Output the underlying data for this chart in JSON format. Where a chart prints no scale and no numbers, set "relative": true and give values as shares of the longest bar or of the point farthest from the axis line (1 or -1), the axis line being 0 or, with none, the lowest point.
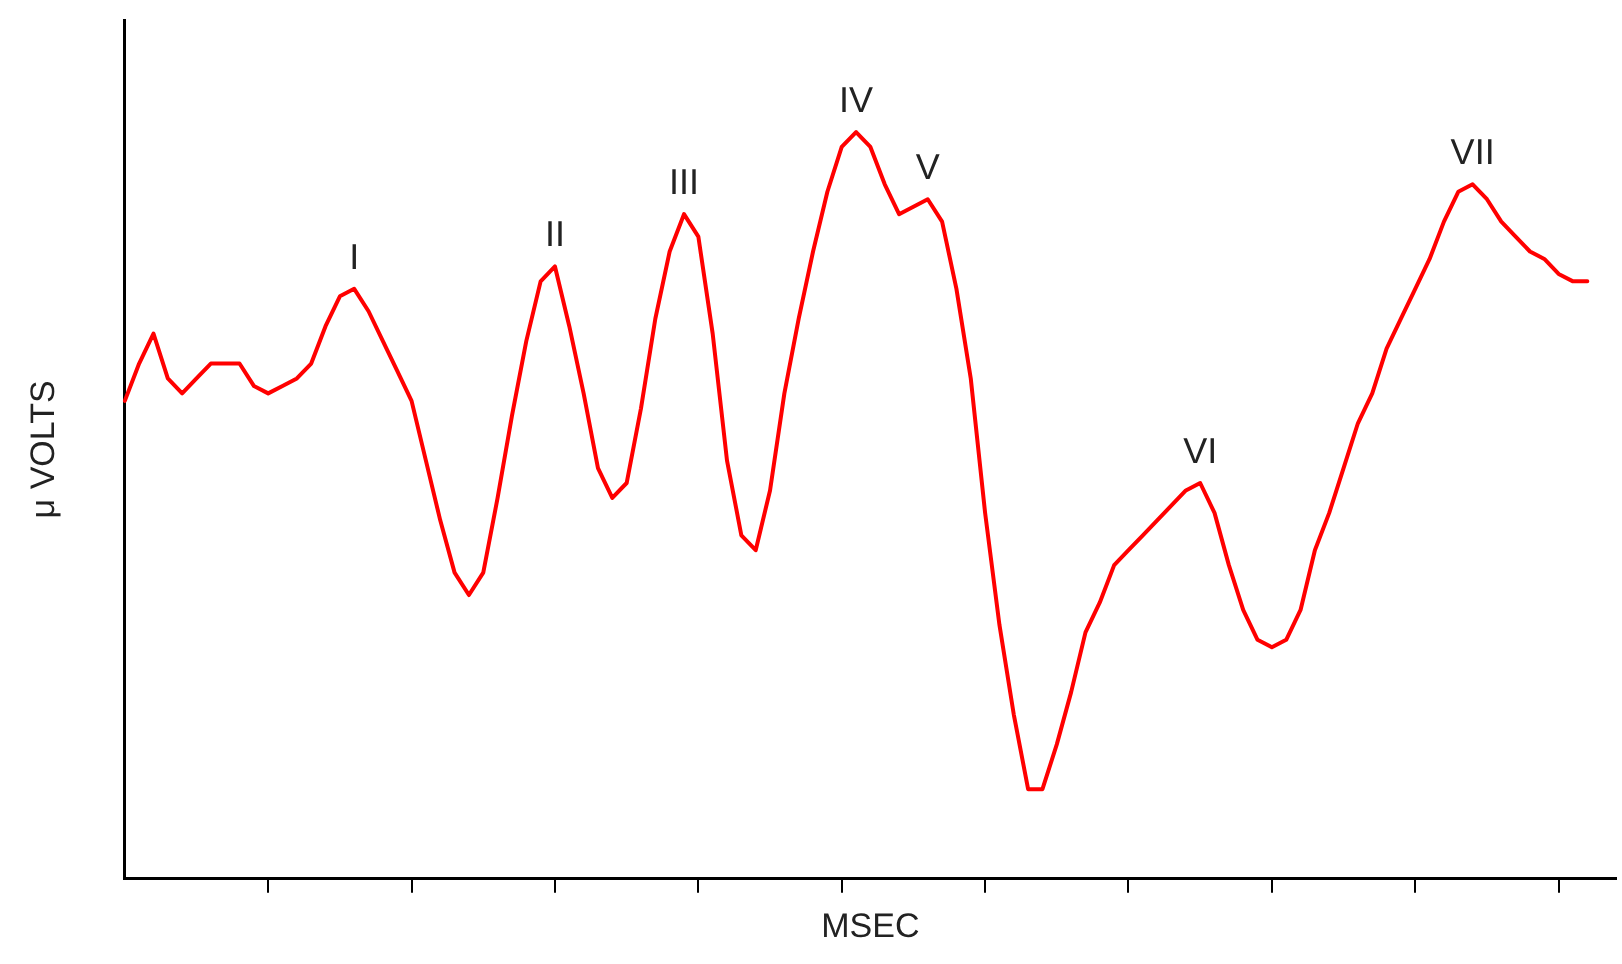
{
  "chart_data": {
    "type": "line",
    "relative": true,
    "xlabel": "MSEC",
    "ylabel": "μ VOLTS",
    "legend": false,
    "marker": "none",
    "line_style": "solid",
    "grid": false,
    "categories": [
      null,
      null,
      null,
      null,
      null,
      null,
      null,
      null,
      null,
      null,
      null,
      null,
      null,
      null,
      null,
      null,
      null,
      null,
      null,
      null,
      null,
      null,
      null,
      null,
      null,
      null,
      null,
      null,
      null,
      null,
      null,
      null,
      null,
      null,
      null,
      null,
      null,
      null,
      null,
      null,
      null,
      null,
      null,
      null,
      null,
      null,
      null,
      null,
      null,
      null,
      null,
      null,
      null,
      null,
      null,
      null,
      null,
      null,
      null,
      null,
      null,
      null,
      null,
      null,
      null,
      null,
      null,
      null,
      null,
      null,
      null,
      null,
      null,
      null,
      null,
      null,
      null,
      null,
      null,
      null,
      null,
      null,
      null,
      null,
      null,
      null,
      null,
      null,
      null,
      null,
      null,
      null,
      null,
      null,
      null,
      null,
      null,
      null,
      null,
      null,
      null,
      null,
      null,
      null,
      null
    ],
    "series": [
      {
        "color": "#ff0000",
        "values": [
          0.64,
          0.69,
          0.73,
          0.67,
          0.65,
          0.67,
          0.69,
          0.69,
          0.69,
          0.66,
          0.65,
          0.66,
          0.67,
          0.69,
          0.74,
          0.78,
          0.79,
          0.76,
          0.72,
          0.68,
          0.64,
          0.56,
          0.48,
          0.41,
          0.38,
          0.41,
          0.51,
          0.62,
          0.72,
          0.8,
          0.82,
          0.74,
          0.65,
          0.55,
          0.51,
          0.53,
          0.63,
          0.75,
          0.84,
          0.89,
          0.86,
          0.73,
          0.56,
          0.46,
          0.44,
          0.52,
          0.65,
          0.75,
          0.84,
          0.92,
          0.98,
          1.0,
          0.98,
          0.93,
          0.89,
          0.9,
          0.91,
          0.88,
          0.79,
          0.67,
          0.49,
          0.34,
          0.22,
          0.12,
          0.12,
          0.18,
          0.25,
          0.33,
          0.37,
          0.42,
          0.44,
          0.46,
          0.48,
          0.5,
          0.52,
          0.53,
          0.49,
          0.42,
          0.36,
          0.32,
          0.31,
          0.32,
          0.36,
          0.44,
          0.49,
          0.55,
          0.61,
          0.65,
          0.71,
          0.75,
          0.79,
          0.83,
          0.88,
          0.92,
          0.93,
          0.91,
          0.88,
          0.86,
          0.84,
          0.83,
          0.81,
          0.8,
          0.8,
          null,
          null
        ]
      }
    ],
    "annotations": [
      {
        "text": "I",
        "y": 0.79
      },
      {
        "text": "II",
        "y": 0.82
      },
      {
        "text": "III",
        "y": 0.89
      },
      {
        "text": "IV",
        "y": 1.0
      },
      {
        "text": "V",
        "y": 0.91
      },
      {
        "text": "VI",
        "y": 0.53
      },
      {
        "text": "VII",
        "y": 0.93
      }
    ]
  }
}
